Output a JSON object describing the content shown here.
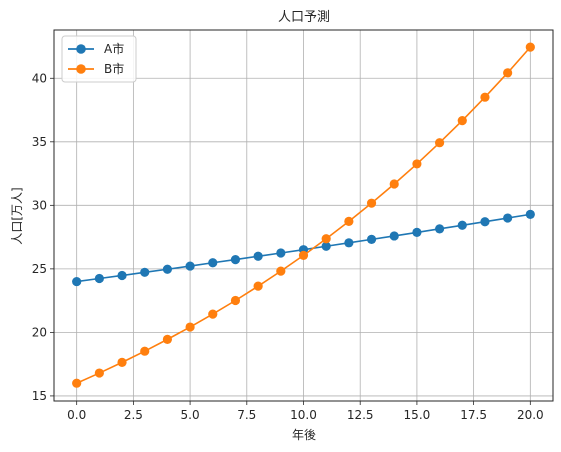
{
  "chart_data": {
    "type": "line",
    "title": "人口予測",
    "xlabel": "年後",
    "ylabel": "人口[万人]",
    "xlim": [
      -1,
      21
    ],
    "ylim": [
      14.6,
      43.8
    ],
    "xticks": [
      "0.0",
      "2.5",
      "5.0",
      "7.5",
      "10.0",
      "12.5",
      "15.0",
      "17.5",
      "20.0"
    ],
    "yticks": [
      "15",
      "20",
      "25",
      "30",
      "35",
      "40"
    ],
    "grid": true,
    "legend_position": "top-left",
    "x": [
      0,
      1,
      2,
      3,
      4,
      5,
      6,
      7,
      8,
      9,
      10,
      11,
      12,
      13,
      14,
      15,
      16,
      17,
      18,
      19,
      20
    ],
    "series": [
      {
        "name": "A市",
        "color": "#1f77b4",
        "values": [
          24.0,
          24.24,
          24.48,
          24.73,
          24.97,
          25.22,
          25.48,
          25.73,
          25.99,
          26.25,
          26.51,
          26.78,
          27.05,
          27.32,
          27.59,
          27.87,
          28.15,
          28.43,
          28.71,
          29.0,
          29.29
        ]
      },
      {
        "name": "B市",
        "color": "#ff7f0e",
        "values": [
          16.0,
          16.8,
          17.64,
          18.52,
          19.45,
          20.42,
          21.44,
          22.51,
          23.64,
          24.82,
          26.06,
          27.37,
          28.74,
          30.17,
          31.68,
          33.26,
          34.93,
          36.67,
          38.51,
          40.43,
          42.45
        ]
      }
    ]
  }
}
